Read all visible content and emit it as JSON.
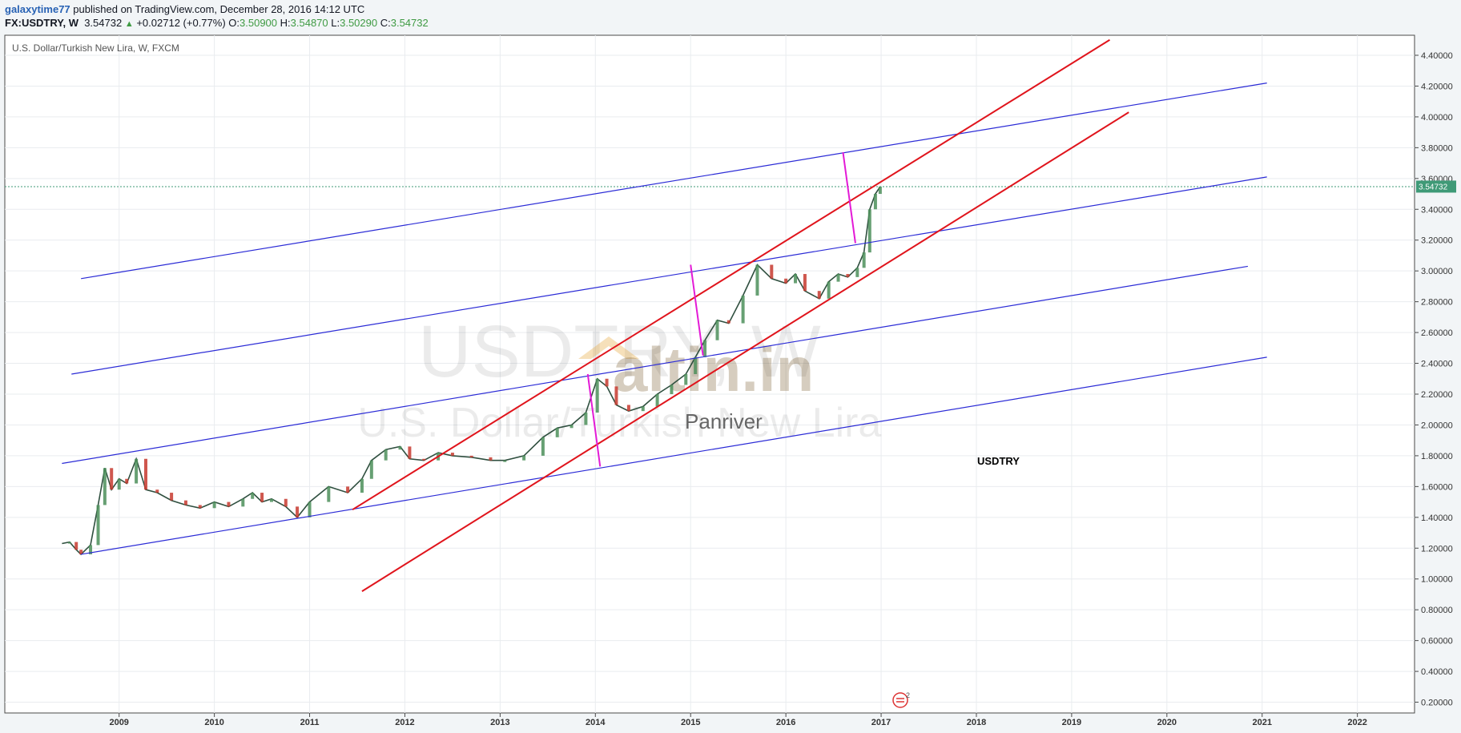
{
  "header": {
    "user": "galaxytime77",
    "published": "published on TradingView.com, December 28, 2016 14:12 UTC",
    "symbol": "FX:USDTRY, W",
    "last": "3.54732",
    "change": "+0.02712 (+0.77%)",
    "o_label": "O:",
    "o_value": "3.50900",
    "h_label": "H:",
    "h_value": "3.54870",
    "l_label": "L:",
    "l_value": "3.50290",
    "c_label": "C:",
    "c_value": "3.54732",
    "up_icon": "up-triangle-icon"
  },
  "chart_data": {
    "type": "line",
    "title": "U.S. Dollar/Turkish New Lira, W, FXCM",
    "watermark": {
      "line1": "USDTRY, W",
      "line2": "U.S. Dollar/Turkish New Lira",
      "logo": "altin.in",
      "logo_sub": "Panriver"
    },
    "annotation": "USDTRY",
    "last_price_label": "3.54732",
    "x_ticks": [
      "2009",
      "2010",
      "2011",
      "2012",
      "2013",
      "2014",
      "2015",
      "2016",
      "2017",
      "2018",
      "2019",
      "2020",
      "2021",
      "2022"
    ],
    "y_ticks": [
      "0.20000",
      "0.40000",
      "0.60000",
      "0.80000",
      "1.00000",
      "1.20000",
      "1.40000",
      "1.60000",
      "1.80000",
      "2.00000",
      "2.20000",
      "2.40000",
      "2.60000",
      "2.80000",
      "3.00000",
      "3.20000",
      "3.40000",
      "3.60000",
      "3.80000",
      "4.00000",
      "4.20000",
      "4.40000"
    ],
    "ylim": [
      0.13,
      4.53
    ],
    "xlim": [
      2007.8,
      2022.6
    ],
    "grid": true,
    "series": [
      {
        "values": [
          [
            2008.4,
            1.23
          ],
          [
            2008.48,
            1.24
          ],
          [
            2008.55,
            1.19
          ],
          [
            2008.6,
            1.16
          ],
          [
            2008.7,
            1.22
          ],
          [
            2008.78,
            1.48
          ],
          [
            2008.85,
            1.72
          ],
          [
            2008.92,
            1.58
          ],
          [
            2009.0,
            1.65
          ],
          [
            2009.08,
            1.62
          ],
          [
            2009.18,
            1.78
          ],
          [
            2009.28,
            1.58
          ],
          [
            2009.4,
            1.56
          ],
          [
            2009.55,
            1.51
          ],
          [
            2009.7,
            1.48
          ],
          [
            2009.85,
            1.46
          ],
          [
            2010.0,
            1.5
          ],
          [
            2010.15,
            1.47
          ],
          [
            2010.3,
            1.52
          ],
          [
            2010.4,
            1.56
          ],
          [
            2010.5,
            1.5
          ],
          [
            2010.6,
            1.52
          ],
          [
            2010.75,
            1.47
          ],
          [
            2010.87,
            1.4
          ],
          [
            2011.0,
            1.5
          ],
          [
            2011.2,
            1.6
          ],
          [
            2011.4,
            1.56
          ],
          [
            2011.55,
            1.65
          ],
          [
            2011.65,
            1.77
          ],
          [
            2011.8,
            1.84
          ],
          [
            2011.95,
            1.86
          ],
          [
            2012.05,
            1.78
          ],
          [
            2012.2,
            1.77
          ],
          [
            2012.35,
            1.82
          ],
          [
            2012.5,
            1.8
          ],
          [
            2012.7,
            1.79
          ],
          [
            2012.9,
            1.77
          ],
          [
            2013.05,
            1.77
          ],
          [
            2013.25,
            1.8
          ],
          [
            2013.45,
            1.92
          ],
          [
            2013.6,
            1.98
          ],
          [
            2013.75,
            2.0
          ],
          [
            2013.9,
            2.08
          ],
          [
            2014.02,
            2.3
          ],
          [
            2014.12,
            2.25
          ],
          [
            2014.22,
            2.13
          ],
          [
            2014.35,
            2.09
          ],
          [
            2014.5,
            2.12
          ],
          [
            2014.65,
            2.2
          ],
          [
            2014.8,
            2.26
          ],
          [
            2014.95,
            2.33
          ],
          [
            2015.05,
            2.44
          ],
          [
            2015.15,
            2.55
          ],
          [
            2015.28,
            2.68
          ],
          [
            2015.4,
            2.66
          ],
          [
            2015.55,
            2.84
          ],
          [
            2015.7,
            3.04
          ],
          [
            2015.85,
            2.95
          ],
          [
            2016.0,
            2.92
          ],
          [
            2016.1,
            2.98
          ],
          [
            2016.2,
            2.87
          ],
          [
            2016.35,
            2.82
          ],
          [
            2016.45,
            2.93
          ],
          [
            2016.55,
            2.98
          ],
          [
            2016.65,
            2.96
          ],
          [
            2016.75,
            3.02
          ],
          [
            2016.82,
            3.12
          ],
          [
            2016.88,
            3.4
          ],
          [
            2016.94,
            3.5
          ],
          [
            2016.99,
            3.547
          ]
        ]
      }
    ],
    "trendlines": [
      {
        "color": "#2b2bd6",
        "from": [
          2008.6,
          2.95
        ],
        "to": [
          2021.05,
          4.22
        ]
      },
      {
        "color": "#2b2bd6",
        "from": [
          2008.5,
          2.33
        ],
        "to": [
          2021.05,
          3.61
        ]
      },
      {
        "color": "#2b2bd6",
        "from": [
          2008.4,
          1.75
        ],
        "to": [
          2020.85,
          3.03
        ]
      },
      {
        "color": "#2b2bd6",
        "from": [
          2008.6,
          1.16
        ],
        "to": [
          2021.05,
          2.44
        ]
      },
      {
        "color": "#e0141c",
        "from": [
          2011.45,
          1.45
        ],
        "to": [
          2019.4,
          4.5
        ]
      },
      {
        "color": "#e0141c",
        "from": [
          2011.55,
          0.92
        ],
        "to": [
          2019.6,
          4.03
        ]
      },
      {
        "color": "#e31ad6",
        "from": [
          2013.92,
          2.33
        ],
        "to": [
          2014.05,
          1.73
        ]
      },
      {
        "color": "#e31ad6",
        "from": [
          2015.0,
          3.04
        ],
        "to": [
          2015.13,
          2.45
        ]
      },
      {
        "color": "#e31ad6",
        "from": [
          2016.6,
          3.77
        ],
        "to": [
          2016.73,
          3.18
        ]
      }
    ]
  }
}
